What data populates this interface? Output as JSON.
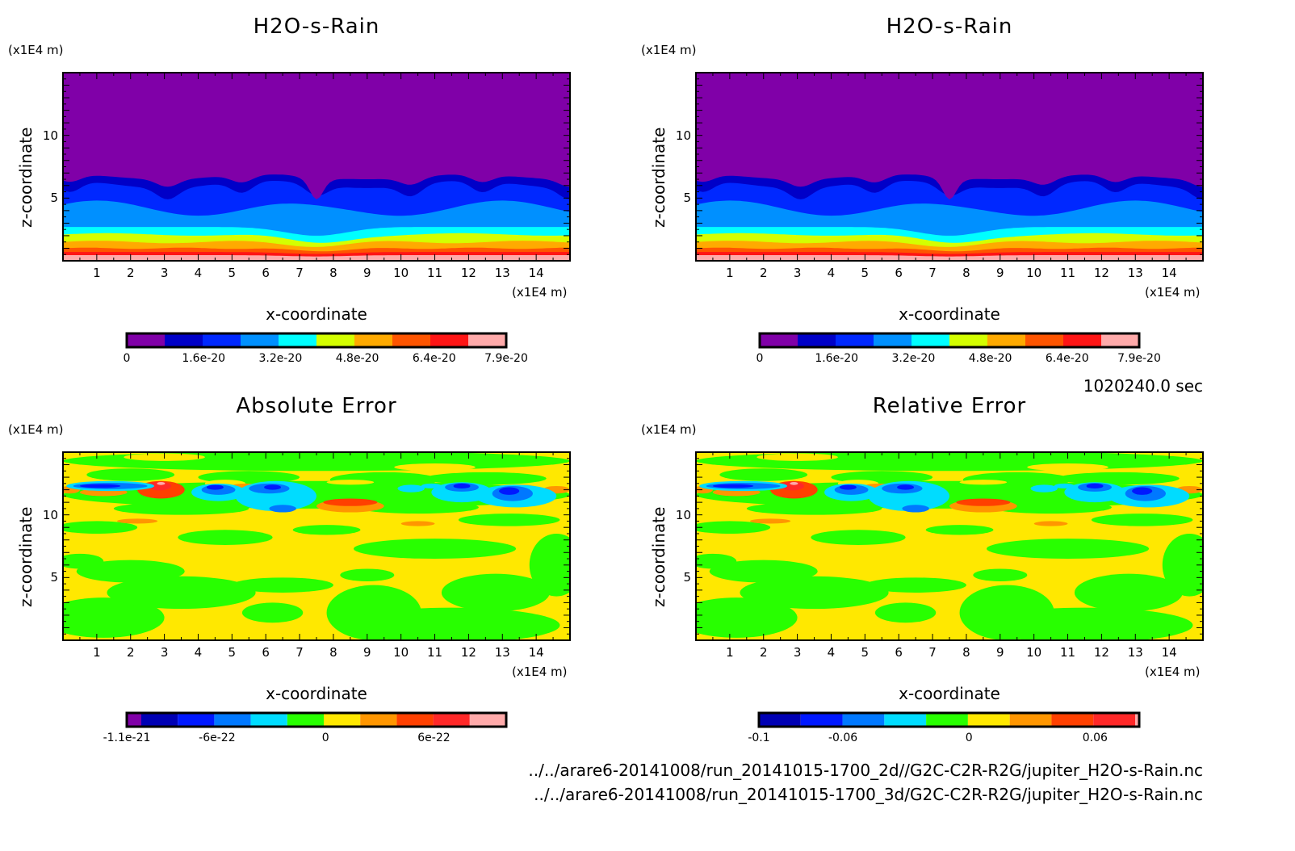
{
  "time_label": "1020240.0 sec",
  "file_paths": [
    "../../arare6-20141008/run_20141015-1700_2d//G2C-C2R-R2G/jupiter_H2O-s-Rain.nc",
    "../../arare6-20141008/run_20141015-1700_3d/G2C-C2R-R2G/jupiter_H2O-s-Rain.nc"
  ],
  "chart_data": [
    {
      "type": "heatmap",
      "kind": "rain",
      "title": "H2O-s-Rain",
      "xlabel": "x-coordinate",
      "ylabel": "z-coordinate",
      "x_unit": "(x1E4 m)",
      "z_unit": "(x1E4 m)",
      "xlim": [
        0,
        15
      ],
      "zlim": [
        0,
        15
      ],
      "x_ticks": [
        "1",
        "2",
        "3",
        "4",
        "5",
        "6",
        "7",
        "8",
        "9",
        "10",
        "11",
        "12",
        "13",
        "14"
      ],
      "z_ticks": [
        "5",
        "10"
      ],
      "colorbar": {
        "colors": [
          "#8000a8",
          "#0000c8",
          "#0028ff",
          "#0090ff",
          "#00ffff",
          "#d4ff00",
          "#ffaa00",
          "#ff5500",
          "#ff1515",
          "#ffaaaa"
        ],
        "labels": [
          "0",
          "1.6e-20",
          "3.2e-20",
          "4.8e-20",
          "6.4e-20",
          "7.9e-20"
        ],
        "label_values": [
          0,
          1.6e-20,
          3.2e-20,
          4.8e-20,
          6.4e-20,
          7.9e-20
        ],
        "range": [
          0,
          7.9e-20
        ]
      }
    },
    {
      "type": "heatmap",
      "kind": "rain",
      "title": "H2O-s-Rain",
      "xlabel": "x-coordinate",
      "ylabel": "z-coordinate",
      "x_unit": "(x1E4 m)",
      "z_unit": "(x1E4 m)",
      "xlim": [
        0,
        15
      ],
      "zlim": [
        0,
        15
      ],
      "x_ticks": [
        "1",
        "2",
        "3",
        "4",
        "5",
        "6",
        "7",
        "8",
        "9",
        "10",
        "11",
        "12",
        "13",
        "14"
      ],
      "z_ticks": [
        "5",
        "10"
      ],
      "colorbar": {
        "colors": [
          "#8000a8",
          "#0000c8",
          "#0028ff",
          "#0090ff",
          "#00ffff",
          "#d4ff00",
          "#ffaa00",
          "#ff5500",
          "#ff1515",
          "#ffaaaa"
        ],
        "labels": [
          "0",
          "1.6e-20",
          "3.2e-20",
          "4.8e-20",
          "6.4e-20",
          "7.9e-20"
        ],
        "label_values": [
          0,
          1.6e-20,
          3.2e-20,
          4.8e-20,
          6.4e-20,
          7.9e-20
        ],
        "range": [
          0,
          7.9e-20
        ]
      }
    },
    {
      "type": "heatmap",
      "kind": "error",
      "title": "Absolute Error",
      "xlabel": "x-coordinate",
      "ylabel": "z-coordinate",
      "x_unit": "(x1E4 m)",
      "z_unit": "(x1E4 m)",
      "xlim": [
        0,
        15
      ],
      "zlim": [
        0,
        15
      ],
      "x_ticks": [
        "1",
        "2",
        "3",
        "4",
        "5",
        "6",
        "7",
        "8",
        "9",
        "10",
        "11",
        "12",
        "13",
        "14"
      ],
      "z_ticks": [
        "5",
        "10"
      ],
      "colorbar": {
        "colors": [
          "#8000a8",
          "#0000b4",
          "#0018ff",
          "#0078ff",
          "#00dcff",
          "#28ff00",
          "#ffe800",
          "#ff9600",
          "#ff4000",
          "#ff2828",
          "#ffaaaa"
        ],
        "labels": [
          "-1.1e-21",
          "-6e-22",
          "0",
          "6e-22"
        ],
        "label_values": [
          -1.1e-21,
          -6e-22,
          0,
          6e-22
        ],
        "range": [
          -1.1e-21,
          1e-21
        ]
      }
    },
    {
      "type": "heatmap",
      "kind": "error",
      "title": "Relative Error",
      "xlabel": "x-coordinate",
      "ylabel": "z-coordinate",
      "x_unit": "(x1E4 m)",
      "z_unit": "(x1E4 m)",
      "xlim": [
        0,
        15
      ],
      "zlim": [
        0,
        15
      ],
      "x_ticks": [
        "1",
        "2",
        "3",
        "4",
        "5",
        "6",
        "7",
        "8",
        "9",
        "10",
        "11",
        "12",
        "13",
        "14"
      ],
      "z_ticks": [
        "5",
        "10"
      ],
      "colorbar": {
        "colors": [
          "#0000b4",
          "#0018ff",
          "#0078ff",
          "#00dcff",
          "#28ff00",
          "#ffe800",
          "#ff9600",
          "#ff4000",
          "#ff2828",
          "#ffaaaa"
        ],
        "labels": [
          "-0.1",
          "-0.06",
          "0",
          "0.06"
        ],
        "label_values": [
          -0.1,
          -0.06,
          0,
          0.06
        ],
        "range": [
          -0.1,
          0.081
        ]
      }
    }
  ]
}
